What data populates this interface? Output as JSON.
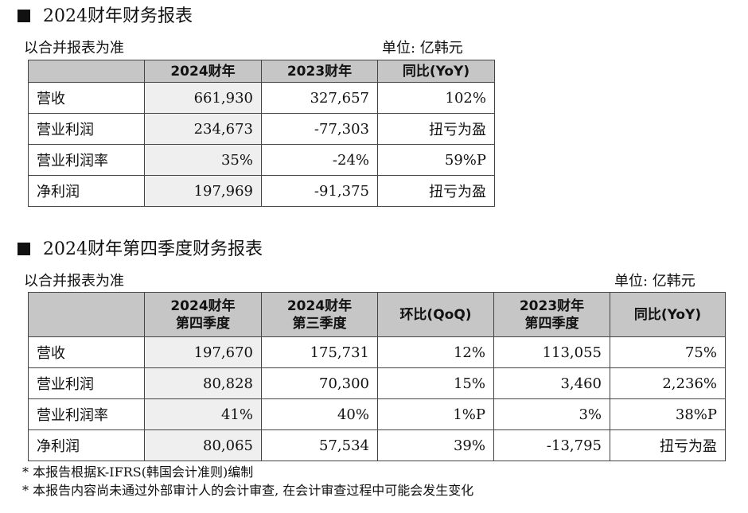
{
  "section1": {
    "title": "2024财年财务报表",
    "basis": "以合并报表为准",
    "unit": "单位: 亿韩元",
    "headers": [
      "",
      "2024财年",
      "2023财年",
      "同比(YoY)"
    ],
    "rows": [
      [
        "营收",
        "661,930",
        "327,657",
        "102%"
      ],
      [
        "营业利润",
        "234,673",
        "-77,303",
        "扭亏为盈"
      ],
      [
        "营业利润率",
        "35%",
        "-24%",
        "59%P"
      ],
      [
        "净利润",
        "197,969",
        "-91,375",
        "扭亏为盈"
      ]
    ]
  },
  "section2": {
    "title": "2024财年第四季度财务报表",
    "basis": "以合并报表为准",
    "unit": "单位: 亿韩元",
    "headers": [
      {
        "l1": "",
        "l2": ""
      },
      {
        "l1": "2024财年",
        "l2": "第四季度"
      },
      {
        "l1": "2024财年",
        "l2": "第三季度"
      },
      {
        "l1": "环比(QoQ)",
        "l2": ""
      },
      {
        "l1": "2023财年",
        "l2": "第四季度"
      },
      {
        "l1": "同比(YoY)",
        "l2": ""
      }
    ],
    "rows": [
      [
        "营收",
        "197,670",
        "175,731",
        "12%",
        "113,055",
        "75%"
      ],
      [
        "营业利润",
        "80,828",
        "70,300",
        "15%",
        "3,460",
        "2,236%"
      ],
      [
        "营业利润率",
        "41%",
        "40%",
        "1%P",
        "3%",
        "38%P"
      ],
      [
        "净利润",
        "80,065",
        "57,534",
        "39%",
        "-13,795",
        "扭亏为盈"
      ]
    ]
  },
  "notes": [
    "* 本报告根据K-IFRS(韩国会计准则)编制",
    "* 本报告内容尚未通过外部审计人的会计审查, 在会计审查过程中可能会发生变化"
  ]
}
